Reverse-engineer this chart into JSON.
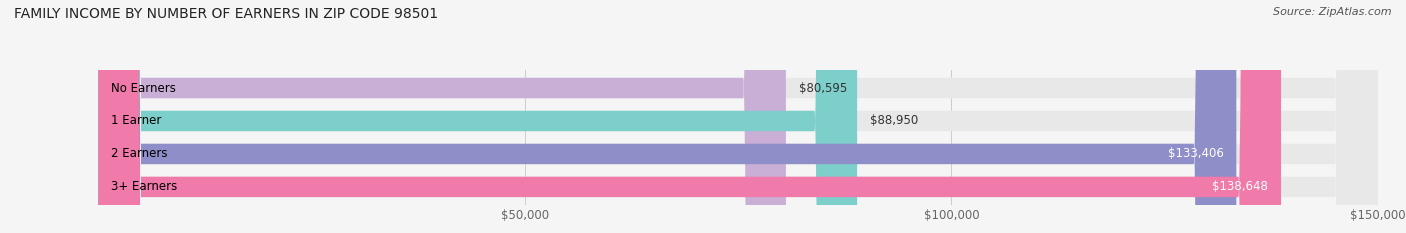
{
  "title": "FAMILY INCOME BY NUMBER OF EARNERS IN ZIP CODE 98501",
  "source": "Source: ZipAtlas.com",
  "categories": [
    "No Earners",
    "1 Earner",
    "2 Earners",
    "3+ Earners"
  ],
  "values": [
    80595,
    88950,
    133406,
    138648
  ],
  "bar_colors": [
    "#c9aed6",
    "#7dcfcb",
    "#8e8ec8",
    "#f07aaa"
  ],
  "bar_bg_color": "#e8e8e8",
  "background_color": "#f5f5f5",
  "xlim": [
    0,
    150000
  ],
  "xticks": [
    50000,
    100000,
    150000
  ],
  "xtick_labels": [
    "$50,000",
    "$100,000",
    "$150,000"
  ],
  "value_labels": [
    "$80,595",
    "$88,950",
    "$133,406",
    "$138,648"
  ],
  "title_fontsize": 10,
  "source_fontsize": 8,
  "label_fontsize": 8.5,
  "value_fontsize": 8.5,
  "bar_height": 0.62
}
